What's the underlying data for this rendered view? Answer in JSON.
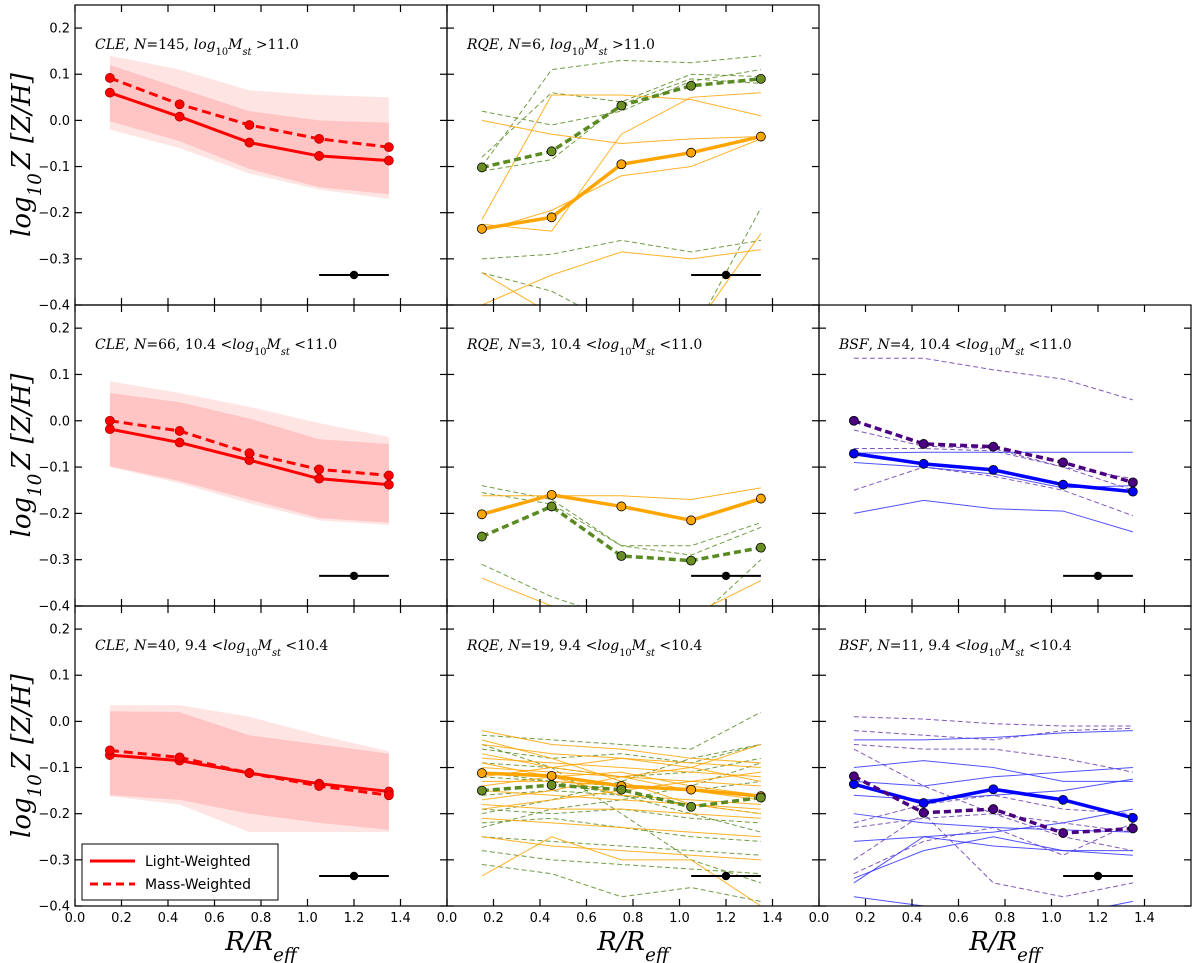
{
  "chart_data": {
    "type": "line",
    "grid": false,
    "x_axis": {
      "label": "R/R_eff",
      "label_main": "R/R",
      "label_sub": "eff",
      "range": [
        0.0,
        1.6
      ],
      "ticks": [
        "0.0",
        "0.2",
        "0.4",
        "0.6",
        "0.8",
        "1.0",
        "1.2",
        "1.4"
      ]
    },
    "y_axis": {
      "label": "log10Z [Z/H]",
      "label_main": "log",
      "label_sub": "10",
      "label_rest": "Z [Z/H]",
      "range": [
        -0.4,
        0.25
      ],
      "ticks": [
        "0.2",
        "0.1",
        "0.0",
        "−0.1",
        "−0.2",
        "−0.3",
        "−0.4"
      ]
    },
    "colors": {
      "cle": "#ff0000",
      "cle_band_inner": "#ffc5c5",
      "cle_band_outer": "#ffe4e4",
      "rqe_light": "#ffa500",
      "rqe_mass": "#5a8a22",
      "rqe_mass_dot": "#6b8e23",
      "bsf_light": "#0000ff",
      "bsf_light_thin": "#3333ff",
      "bsf_mass": "#4b0082",
      "bsf_mass_thin": "#6a3cb0",
      "error": "#000000"
    },
    "legend": {
      "location": "lower-left",
      "entries": [
        {
          "label": "Light-Weighted",
          "style": "solid"
        },
        {
          "label": "Mass-Weighted",
          "style": "dashed"
        }
      ]
    },
    "x_points": [
      0.15,
      0.45,
      0.75,
      1.05,
      1.35
    ],
    "error_bar": {
      "x": 1.2,
      "y": -0.335,
      "xerr": 0.15
    },
    "panels": [
      {
        "id": "r0c0",
        "row": 0,
        "col": 0,
        "kind": "cle",
        "title": {
          "cls": "CLE",
          "n": "145",
          "mass": "log10Mst >11.0"
        },
        "light": [
          0.06,
          0.008,
          -0.048,
          -0.077,
          -0.087
        ],
        "mass": [
          0.092,
          0.035,
          -0.01,
          -0.04,
          -0.058
        ],
        "band_inner": {
          "lo": [
            -0.002,
            -0.045,
            -0.105,
            -0.145,
            -0.16
          ],
          "hi": [
            0.12,
            0.07,
            0.02,
            0.0,
            -0.005
          ]
        },
        "band_outer": {
          "lo": [
            -0.02,
            -0.06,
            -0.115,
            -0.15,
            -0.17
          ],
          "hi": [
            0.14,
            0.11,
            0.065,
            0.055,
            0.05
          ]
        }
      },
      {
        "id": "r0c1",
        "row": 0,
        "col": 1,
        "kind": "rqe",
        "title": {
          "cls": "RQE",
          "n": "6",
          "mass": "log10Mst >11.0"
        },
        "light": [
          -0.235,
          -0.21,
          -0.095,
          -0.07,
          -0.035
        ],
        "mass": [
          -0.102,
          -0.067,
          0.032,
          0.075,
          0.09
        ],
        "thin_light": [
          [
            -0.225,
            -0.24,
            -0.03,
            0.05,
            0.06
          ],
          [
            -0.215,
            0.055,
            0.055,
            0.045,
            0.01
          ],
          [
            0.0,
            -0.03,
            -0.05,
            -0.04,
            -0.035
          ],
          [
            -0.24,
            -0.195,
            -0.12,
            -0.1,
            -0.04
          ],
          [
            -0.33,
            -0.42,
            -0.45,
            -0.46,
            -0.245
          ],
          [
            -0.4,
            -0.335,
            -0.285,
            -0.3,
            -0.28
          ]
        ],
        "thin_mass": [
          [
            -0.1,
            0.11,
            0.13,
            0.125,
            0.14
          ],
          [
            -0.08,
            0.06,
            0.04,
            0.1,
            0.095
          ],
          [
            -0.11,
            -0.085,
            0.035,
            0.09,
            0.08
          ],
          [
            0.02,
            -0.01,
            0.02,
            0.085,
            0.11
          ],
          [
            -0.3,
            -0.29,
            -0.26,
            -0.285,
            -0.26
          ],
          [
            -0.33,
            -0.37,
            -0.45,
            -0.47,
            -0.19
          ]
        ]
      },
      {
        "id": "r1c0",
        "row": 1,
        "col": 0,
        "kind": "cle",
        "title": {
          "cls": "CLE",
          "n": "66",
          "mass": "10.4 <log10Mst <11.0"
        },
        "light": [
          -0.018,
          -0.047,
          -0.085,
          -0.125,
          -0.138
        ],
        "mass": [
          0.0,
          -0.022,
          -0.07,
          -0.105,
          -0.118
        ],
        "band_inner": {
          "lo": [
            -0.098,
            -0.13,
            -0.17,
            -0.21,
            -0.22
          ],
          "hi": [
            0.06,
            0.04,
            0.005,
            -0.04,
            -0.05
          ]
        },
        "band_outer": {
          "lo": [
            -0.1,
            -0.135,
            -0.178,
            -0.215,
            -0.225
          ],
          "hi": [
            0.085,
            0.06,
            0.03,
            -0.005,
            -0.035
          ]
        }
      },
      {
        "id": "r1c1",
        "row": 1,
        "col": 1,
        "kind": "rqe",
        "title": {
          "cls": "RQE",
          "n": "3",
          "mass": "10.4 <log10Mst <11.0"
        },
        "light": [
          -0.202,
          -0.16,
          -0.185,
          -0.215,
          -0.168
        ],
        "mass": [
          -0.25,
          -0.185,
          -0.292,
          -0.302,
          -0.274
        ],
        "thin_light": [
          [
            -0.162,
            -0.162,
            -0.162,
            -0.17,
            -0.145
          ],
          [
            -0.34,
            -0.4,
            -0.44,
            -0.42,
            -0.345
          ]
        ],
        "thin_mass": [
          [
            -0.14,
            -0.17,
            -0.27,
            -0.29,
            -0.23
          ],
          [
            -0.155,
            -0.18,
            -0.27,
            -0.27,
            -0.22
          ],
          [
            -0.31,
            -0.38,
            -0.43,
            -0.44,
            -0.3
          ]
        ]
      },
      {
        "id": "r1c2",
        "row": 1,
        "col": 2,
        "kind": "bsf",
        "title": {
          "cls": "BSF",
          "n": "4",
          "mass": "10.4 <log10Mst <11.0"
        },
        "light": [
          -0.071,
          -0.093,
          -0.106,
          -0.138,
          -0.153
        ],
        "mass": [
          0.0,
          -0.05,
          -0.056,
          -0.09,
          -0.133
        ],
        "thin_light": [
          [
            -0.07,
            -0.068,
            -0.068,
            -0.068,
            -0.068
          ],
          [
            -0.2,
            -0.172,
            -0.19,
            -0.195,
            -0.24
          ],
          [
            -0.09,
            -0.1,
            -0.115,
            -0.145,
            -0.14
          ]
        ],
        "thin_mass": [
          [
            0.135,
            0.135,
            0.11,
            0.09,
            0.045
          ],
          [
            -0.15,
            -0.1,
            -0.12,
            -0.15,
            -0.205
          ],
          [
            -0.06,
            -0.06,
            -0.065,
            -0.1,
            -0.125
          ],
          [
            -0.02,
            -0.055,
            -0.06,
            -0.1,
            -0.15
          ]
        ]
      },
      {
        "id": "r2c0",
        "row": 2,
        "col": 0,
        "kind": "cle",
        "title": {
          "cls": "CLE",
          "n": "40",
          "mass": "9.4 <log10Mst <10.4"
        },
        "light": [
          -0.073,
          -0.085,
          -0.112,
          -0.135,
          -0.152
        ],
        "mass": [
          -0.063,
          -0.078,
          -0.112,
          -0.14,
          -0.16
        ],
        "band_inner": {
          "lo": [
            -0.16,
            -0.17,
            -0.2,
            -0.22,
            -0.235
          ],
          "hi": [
            0.022,
            0.02,
            -0.03,
            -0.05,
            -0.07
          ]
        },
        "band_outer": {
          "lo": [
            -0.162,
            -0.18,
            -0.24,
            -0.24,
            -0.24
          ],
          "hi": [
            0.035,
            0.035,
            0.01,
            -0.03,
            -0.065
          ]
        }
      },
      {
        "id": "r2c1",
        "row": 2,
        "col": 1,
        "kind": "rqe",
        "title": {
          "cls": "RQE",
          "n": "19",
          "mass": "9.4 <log10Mst <10.4"
        },
        "light": [
          -0.112,
          -0.118,
          -0.14,
          -0.148,
          -0.162
        ],
        "mass": [
          -0.15,
          -0.138,
          -0.148,
          -0.185,
          -0.165
        ],
        "thin_light": [
          [
            -0.02,
            -0.05,
            -0.06,
            -0.08,
            -0.09
          ],
          [
            -0.05,
            -0.07,
            -0.08,
            -0.09,
            -0.1
          ],
          [
            -0.08,
            -0.09,
            -0.1,
            -0.11,
            -0.12
          ],
          [
            -0.1,
            -0.11,
            -0.12,
            -0.13,
            -0.14
          ],
          [
            -0.13,
            -0.13,
            -0.14,
            -0.15,
            -0.16
          ],
          [
            -0.15,
            -0.16,
            -0.17,
            -0.18,
            -0.19
          ],
          [
            -0.18,
            -0.19,
            -0.19,
            -0.2,
            -0.21
          ],
          [
            -0.21,
            -0.22,
            -0.23,
            -0.24,
            -0.25
          ],
          [
            -0.335,
            -0.25,
            -0.3,
            -0.3,
            -0.4
          ],
          [
            -0.25,
            -0.27,
            -0.28,
            -0.29,
            -0.3
          ],
          [
            -0.04,
            -0.08,
            -0.13,
            -0.18,
            -0.2
          ],
          [
            -0.17,
            -0.15,
            -0.12,
            -0.1,
            -0.05
          ],
          [
            -0.12,
            -0.1,
            -0.08,
            -0.1,
            -0.13
          ],
          [
            -0.09,
            -0.12,
            -0.16,
            -0.17,
            -0.18
          ],
          [
            -0.19,
            -0.17,
            -0.15,
            -0.13,
            -0.11
          ],
          [
            -0.07,
            -0.1,
            -0.12,
            -0.15,
            -0.17
          ],
          [
            -0.14,
            -0.12,
            -0.11,
            -0.14,
            -0.16
          ]
        ],
        "thin_mass": [
          [
            -0.03,
            -0.04,
            -0.05,
            -0.06,
            0.02
          ],
          [
            -0.06,
            -0.08,
            -0.07,
            -0.09,
            -0.05
          ],
          [
            -0.09,
            -0.1,
            -0.12,
            -0.11,
            -0.08
          ],
          [
            -0.12,
            -0.13,
            -0.14,
            -0.15,
            -0.13
          ],
          [
            -0.16,
            -0.15,
            -0.16,
            -0.18,
            -0.2
          ],
          [
            -0.19,
            -0.2,
            -0.19,
            -0.21,
            -0.22
          ],
          [
            -0.22,
            -0.21,
            -0.23,
            -0.25,
            -0.26
          ],
          [
            -0.25,
            -0.26,
            -0.27,
            -0.28,
            -0.29
          ],
          [
            -0.28,
            -0.3,
            -0.31,
            -0.32,
            -0.33
          ],
          [
            -0.31,
            -0.33,
            -0.38,
            -0.36,
            -0.39
          ],
          [
            -0.05,
            -0.1,
            -0.2,
            -0.3,
            -0.35
          ],
          [
            -0.2,
            -0.17,
            -0.13,
            -0.08,
            -0.05
          ],
          [
            -0.11,
            -0.13,
            -0.16,
            -0.2,
            -0.24
          ],
          [
            -0.23,
            -0.19,
            -0.17,
            -0.14,
            -0.09
          ]
        ]
      },
      {
        "id": "r2c2",
        "row": 2,
        "col": 2,
        "kind": "bsf",
        "title": {
          "cls": "BSF",
          "n": "11",
          "mass": "9.4 <log10Mst <10.4"
        },
        "light": [
          -0.136,
          -0.177,
          -0.147,
          -0.17,
          -0.209
        ],
        "mass": [
          -0.119,
          -0.198,
          -0.19,
          -0.242,
          -0.232
        ],
        "thin_light": [
          [
            -0.04,
            -0.04,
            -0.035,
            -0.025,
            -0.02
          ],
          [
            -0.1,
            -0.085,
            -0.1,
            -0.13,
            -0.13
          ],
          [
            -0.13,
            -0.14,
            -0.12,
            -0.11,
            -0.1
          ],
          [
            -0.16,
            -0.17,
            -0.16,
            -0.15,
            -0.125
          ],
          [
            -0.26,
            -0.25,
            -0.24,
            -0.22,
            -0.19
          ],
          [
            -0.34,
            -0.28,
            -0.25,
            -0.28,
            -0.28
          ],
          [
            -0.35,
            -0.25,
            -0.27,
            -0.28,
            -0.29
          ],
          [
            -0.38,
            -0.4,
            -0.42,
            -0.42,
            -0.39
          ],
          [
            -0.2,
            -0.22,
            -0.23,
            -0.235,
            -0.24
          ]
        ],
        "thin_mass": [
          [
            0.01,
            0.005,
            -0.005,
            -0.01,
            -0.01
          ],
          [
            -0.02,
            -0.03,
            -0.04,
            -0.02,
            -0.015
          ],
          [
            -0.23,
            -0.21,
            -0.2,
            -0.22,
            -0.24
          ],
          [
            -0.05,
            -0.06,
            -0.06,
            -0.08,
            -0.11
          ],
          [
            -0.33,
            -0.26,
            -0.23,
            -0.29,
            -0.22
          ],
          [
            -0.22,
            -0.18,
            -0.16,
            -0.19,
            -0.2
          ],
          [
            -0.06,
            -0.14,
            -0.2,
            -0.25,
            -0.28
          ],
          [
            -0.3,
            -0.2,
            -0.35,
            -0.38,
            -0.35
          ]
        ]
      }
    ]
  }
}
